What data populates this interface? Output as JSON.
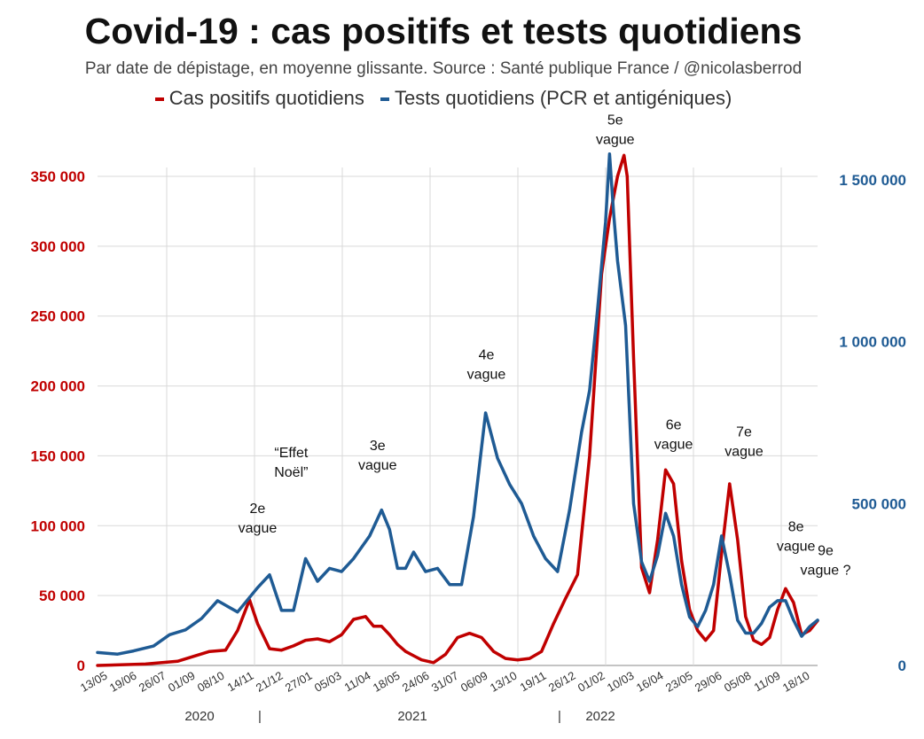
{
  "chart_data": {
    "type": "line",
    "title": "Covid-19 : cas positifs et tests quotidiens",
    "subtitle": "Par date de dépistage, en moyenne glissante. Source : Santé publique France / @nicolasberrod",
    "legend": [
      "Cas positifs quotidiens",
      "Tests quotidiens (PCR et antigéniques)"
    ],
    "colors": {
      "cases": "#c00000",
      "tests": "#1f5b94",
      "grid": "#d9d9d9"
    },
    "y_left": {
      "min": 0,
      "max": 350000,
      "ticks": [
        0,
        50000,
        100000,
        150000,
        200000,
        250000,
        300000,
        350000
      ],
      "tick_labels": [
        "0",
        "50 000",
        "100 000",
        "150 000",
        "200 000",
        "250 000",
        "300 000",
        "350 000"
      ]
    },
    "y_right": {
      "min": 0,
      "max": 1500000,
      "ticks": [
        0,
        500000,
        1000000,
        1500000
      ],
      "tick_labels": [
        "0",
        "500 000",
        "1 000 000",
        "1 500 000"
      ]
    },
    "x_tick_labels": [
      "13/05",
      "19/06",
      "26/07",
      "01/09",
      "08/10",
      "14/11",
      "21/12",
      "27/01",
      "05/03",
      "11/04",
      "18/05",
      "24/06",
      "31/07",
      "06/09",
      "13/10",
      "19/11",
      "26/12",
      "01/02",
      "10/03",
      "16/04",
      "23/05",
      "29/06",
      "05/08",
      "11/09",
      "18/10"
    ],
    "year_labels": [
      "2020",
      "2021",
      "2022"
    ],
    "year_separator": "|",
    "x_range": [
      0,
      900
    ],
    "series": [
      {
        "name": "Cas positifs quotidiens",
        "axis": "left",
        "x": [
          0,
          60,
          100,
          140,
          160,
          175,
          190,
          200,
          215,
          230,
          245,
          260,
          275,
          290,
          305,
          320,
          335,
          345,
          355,
          365,
          375,
          385,
          395,
          405,
          420,
          435,
          450,
          465,
          480,
          495,
          510,
          525,
          540,
          555,
          570,
          585,
          600,
          615,
          630,
          640,
          650,
          658,
          662,
          670,
          680,
          690,
          700,
          710,
          720,
          730,
          740,
          750,
          760,
          770,
          780,
          790,
          800,
          810,
          820,
          830,
          840,
          850,
          860,
          870,
          880,
          890,
          900
        ],
        "values": [
          0,
          1000,
          3000,
          10000,
          11000,
          25000,
          47000,
          30000,
          12000,
          11000,
          14000,
          18000,
          19000,
          17000,
          22000,
          33000,
          35000,
          28000,
          28000,
          22000,
          15000,
          10000,
          7000,
          4000,
          2000,
          8000,
          20000,
          23000,
          20000,
          10000,
          5000,
          4000,
          5000,
          10000,
          30000,
          48000,
          65000,
          150000,
          280000,
          320000,
          350000,
          365000,
          350000,
          220000,
          70000,
          52000,
          90000,
          140000,
          130000,
          75000,
          40000,
          25000,
          18000,
          25000,
          80000,
          130000,
          90000,
          35000,
          18000,
          15000,
          20000,
          40000,
          55000,
          45000,
          22000,
          25000,
          32000
        ]
      },
      {
        "name": "Tests quotidiens (PCR et antigéniques)",
        "axis": "right",
        "x": [
          0,
          25,
          45,
          70,
          90,
          110,
          130,
          150,
          175,
          200,
          215,
          230,
          245,
          260,
          275,
          290,
          305,
          320,
          340,
          355,
          365,
          375,
          385,
          395,
          410,
          425,
          440,
          455,
          470,
          485,
          500,
          515,
          530,
          545,
          560,
          575,
          590,
          605,
          615,
          625,
          635,
          640,
          645,
          650,
          660,
          670,
          680,
          690,
          700,
          710,
          720,
          730,
          740,
          750,
          760,
          770,
          780,
          790,
          800,
          810,
          820,
          830,
          840,
          850,
          860,
          870,
          880,
          890,
          900
        ],
        "values": [
          40000,
          35000,
          45000,
          60000,
          95000,
          110000,
          145000,
          200000,
          165000,
          240000,
          280000,
          170000,
          170000,
          330000,
          260000,
          300000,
          290000,
          330000,
          400000,
          480000,
          420000,
          300000,
          300000,
          350000,
          290000,
          300000,
          250000,
          250000,
          460000,
          780000,
          640000,
          560000,
          500000,
          400000,
          330000,
          290000,
          480000,
          720000,
          850000,
          1100000,
          1370000,
          1580000,
          1400000,
          1250000,
          1050000,
          500000,
          320000,
          260000,
          340000,
          470000,
          400000,
          250000,
          150000,
          120000,
          170000,
          250000,
          400000,
          280000,
          140000,
          100000,
          100000,
          130000,
          180000,
          200000,
          200000,
          140000,
          90000,
          120000,
          140000
        ]
      }
    ],
    "annotations": [
      {
        "lines": [
          "2e",
          "vague"
        ],
        "x": 200,
        "y": 95000
      },
      {
        "lines": [
          "“Effet",
          "Noël”"
        ],
        "x": 242,
        "y": 135000
      },
      {
        "lines": [
          "3e",
          "vague"
        ],
        "x": 350,
        "y": 140000
      },
      {
        "lines": [
          "4e",
          "vague"
        ],
        "x": 486,
        "y": 205000
      },
      {
        "lines": [
          "5e",
          "vague"
        ],
        "x": 647,
        "y": 373000
      },
      {
        "lines": [
          "6e",
          "vague"
        ],
        "x": 720,
        "y": 155000
      },
      {
        "lines": [
          "7e",
          "vague"
        ],
        "x": 808,
        "y": 150000
      },
      {
        "lines": [
          "8e",
          "vague"
        ],
        "x": 873,
        "y": 82000
      },
      {
        "lines": [
          "9e",
          "vague ?"
        ],
        "x": 910,
        "y": 65000
      }
    ]
  }
}
